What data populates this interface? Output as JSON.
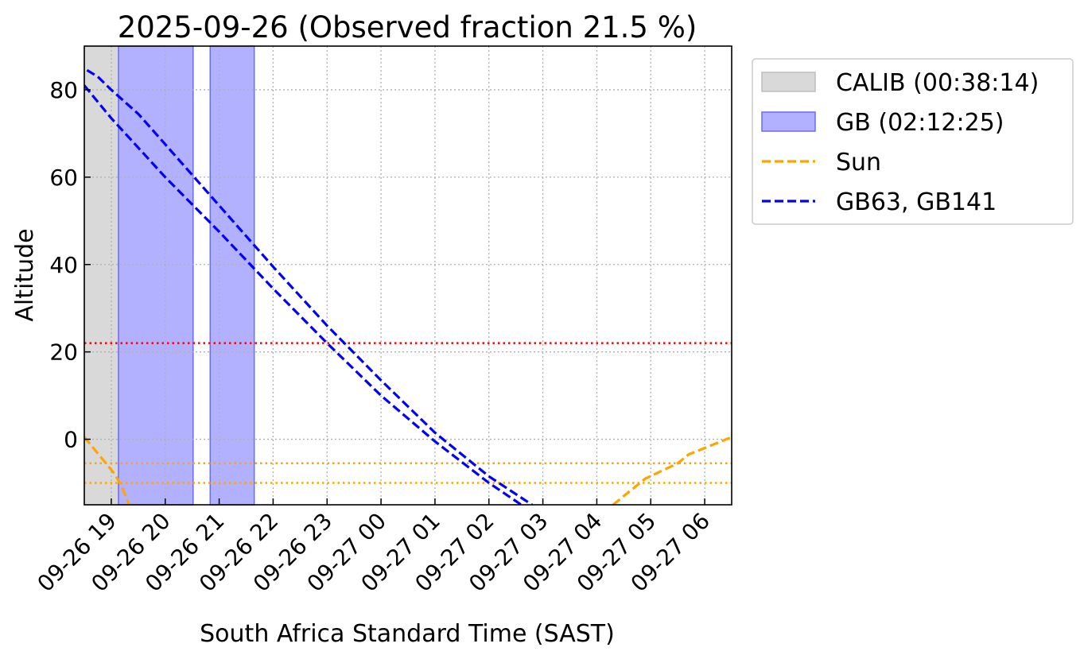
{
  "chart_data": {
    "type": "line",
    "title": "2025-09-26 (Observed fraction 21.5 %)",
    "xlabel": "South Africa Standard Time (SAST)",
    "ylabel": "Altitude",
    "xlim": [
      "2025-09-26 18:30",
      "2025-09-27 06:30"
    ],
    "ylim": [
      -15,
      90
    ],
    "grid": true,
    "x_ticks": [
      "09-26 19",
      "09-26 20",
      "09-26 21",
      "09-26 22",
      "09-26 23",
      "09-27 00",
      "09-27 01",
      "09-27 02",
      "09-27 03",
      "09-27 04",
      "09-27 05",
      "09-27 06"
    ],
    "y_ticks": [
      0,
      20,
      40,
      60,
      80
    ],
    "legend_position": "outside-top-right",
    "spans": [
      {
        "legend": "CALIB (00:38:14)",
        "color": "#d9d9d9",
        "edge": "#bdbdbd",
        "intervals": [
          [
            "2025-09-26 18:30",
            "2025-09-26 19:08"
          ]
        ]
      },
      {
        "legend": "GB (02:12:25)",
        "color": "#b1b1ff",
        "edge": "#6c6cf0",
        "intervals": [
          [
            "2025-09-26 19:08",
            "2025-09-26 20:31"
          ],
          [
            "2025-09-26 20:50",
            "2025-09-26 21:39"
          ]
        ]
      }
    ],
    "hlines": [
      {
        "y": 22,
        "color": "#ff0000",
        "style": "dotted"
      },
      {
        "y": -5.5,
        "color": "#ffa500",
        "style": "dotted"
      },
      {
        "y": -10,
        "color": "#ffa500",
        "style": "dotted"
      }
    ],
    "series": [
      {
        "legend": "Sun",
        "color": "#ffa500",
        "style": "dashed",
        "segments": [
          {
            "x": [
              "2025-09-26 18:30",
              "2025-09-26 18:52",
              "2025-09-26 19:04",
              "2025-09-26 19:12",
              "2025-09-26 19:20"
            ],
            "y": [
              0.5,
              -5,
              -8,
              -11,
              -15
            ]
          },
          {
            "x": [
              "2025-09-27 04:18",
              "2025-09-27 04:54",
              "2025-09-27 05:30",
              "2025-09-27 05:42",
              "2025-09-27 06:30"
            ],
            "y": [
              -15,
              -9,
              -5.5,
              -3.5,
              0.5
            ]
          }
        ]
      },
      {
        "legend": "GB63, GB141",
        "color": "#0000ff",
        "style": "dashed",
        "segments": [
          {
            "x": [
              "2025-09-26 18:33",
              "2025-09-26 18:45",
              "2025-09-26 19:00",
              "2025-09-26 19:30",
              "2025-09-26 20:00",
              "2025-09-26 21:00",
              "2025-09-26 22:00",
              "2025-09-26 23:00",
              "2025-09-27 00:00",
              "2025-09-27 01:00",
              "2025-09-27 02:00",
              "2025-09-27 02:48"
            ],
            "y": [
              84.5,
              83,
              80,
              74.5,
              67.5,
              53.5,
              39.5,
              26,
              13.5,
              1.5,
              -8.5,
              -15
            ]
          },
          {
            "x": [
              "2025-09-26 18:30",
              "2025-09-26 19:00",
              "2025-09-26 20:00",
              "2025-09-26 21:00",
              "2025-09-26 22:00",
              "2025-09-26 23:00",
              "2025-09-27 00:00",
              "2025-09-27 01:00",
              "2025-09-27 02:00",
              "2025-09-27 02:36"
            ],
            "y": [
              81,
              73.5,
              60,
              47.5,
              34.5,
              22,
              10,
              -0.5,
              -10,
              -15
            ]
          }
        ]
      }
    ]
  }
}
